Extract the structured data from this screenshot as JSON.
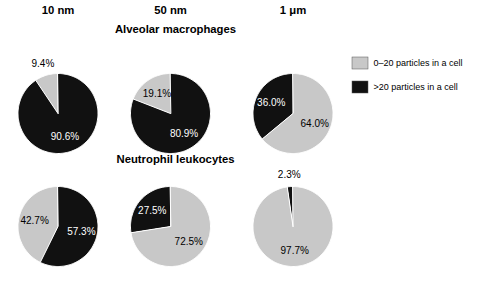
{
  "chart_data": [
    {
      "type": "pie",
      "title": "Alveolar macrophages",
      "legend": "right",
      "data_labels": true,
      "categories": [
        "0–20 particles in a cell",
        ">20 particles in a cell"
      ],
      "colors": [
        "#c8c8c8",
        "#111111"
      ],
      "series": [
        {
          "name": "10 nm",
          "values": [
            9.4,
            90.6
          ],
          "value_labels": [
            "9.4%",
            "90.6%"
          ],
          "colors": [
            "#c8c8c8",
            "#111111"
          ]
        },
        {
          "name": "50 nm",
          "values": [
            19.1,
            80.9
          ],
          "value_labels": [
            "19.1%",
            "80.9%"
          ],
          "colors": [
            "#c8c8c8",
            "#111111"
          ]
        },
        {
          "name": "1 μm",
          "values": [
            36.0,
            64.0
          ],
          "value_labels": [
            "36.0%",
            "64.0%"
          ],
          "colors": [
            "#111111",
            "#c8c8c8"
          ]
        }
      ]
    },
    {
      "type": "pie",
      "title": "Neutrophil leukocytes",
      "data_labels": true,
      "series": [
        {
          "values": [
            42.7,
            57.3
          ],
          "value_labels": [
            "42.7%",
            "57.3%"
          ],
          "colors": [
            "#c8c8c8",
            "#111111"
          ]
        },
        {
          "values": [
            27.5,
            72.5
          ],
          "value_labels": [
            "27.5%",
            "72.5%"
          ],
          "colors": [
            "#111111",
            "#c8c8c8"
          ]
        },
        {
          "values": [
            2.3,
            97.7
          ],
          "value_labels": [
            "2.3%",
            "97.7%"
          ],
          "colors": [
            "#111111",
            "#c8c8c8"
          ]
        }
      ]
    }
  ]
}
